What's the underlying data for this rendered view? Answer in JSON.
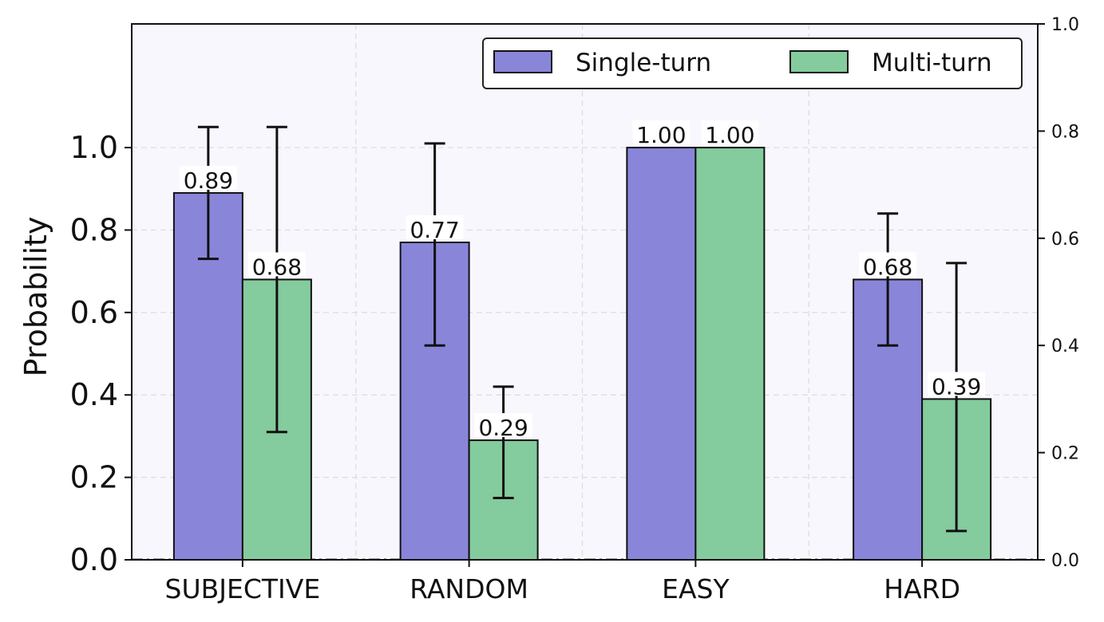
{
  "chart_data": {
    "type": "bar",
    "ylabel": "Probability",
    "categories": [
      "SUBJECTIVE",
      "RANDOM",
      "EASY",
      "HARD"
    ],
    "series": [
      {
        "name": "Single-turn",
        "values": [
          0.89,
          0.77,
          1.0,
          0.68
        ],
        "err_low": [
          0.73,
          0.52,
          1.0,
          0.52
        ],
        "err_high": [
          1.05,
          1.01,
          1.0,
          0.84
        ],
        "color": "#8985d9"
      },
      {
        "name": "Multi-turn",
        "values": [
          0.68,
          0.29,
          1.0,
          0.39
        ],
        "err_low": [
          0.31,
          0.15,
          1.0,
          0.07
        ],
        "err_high": [
          1.05,
          0.42,
          1.0,
          0.72
        ],
        "color": "#84cb9d"
      }
    ],
    "value_labels": [
      [
        "0.89",
        "0.77",
        "1.00",
        "0.68"
      ],
      [
        "0.68",
        "0.29",
        "1.00",
        "0.39"
      ]
    ],
    "ylim": [
      0,
      1.3
    ],
    "yticks": [
      "0.0",
      "0.2",
      "0.4",
      "0.6",
      "0.8",
      "1.0"
    ],
    "ylim_right": [
      0,
      1.0
    ],
    "yticks_right": [
      "0.0",
      "0.2",
      "0.4",
      "0.6",
      "0.8",
      "1.0"
    ],
    "grid": true,
    "legend_position": "top-right",
    "plot_background": "#f8f7fe"
  }
}
